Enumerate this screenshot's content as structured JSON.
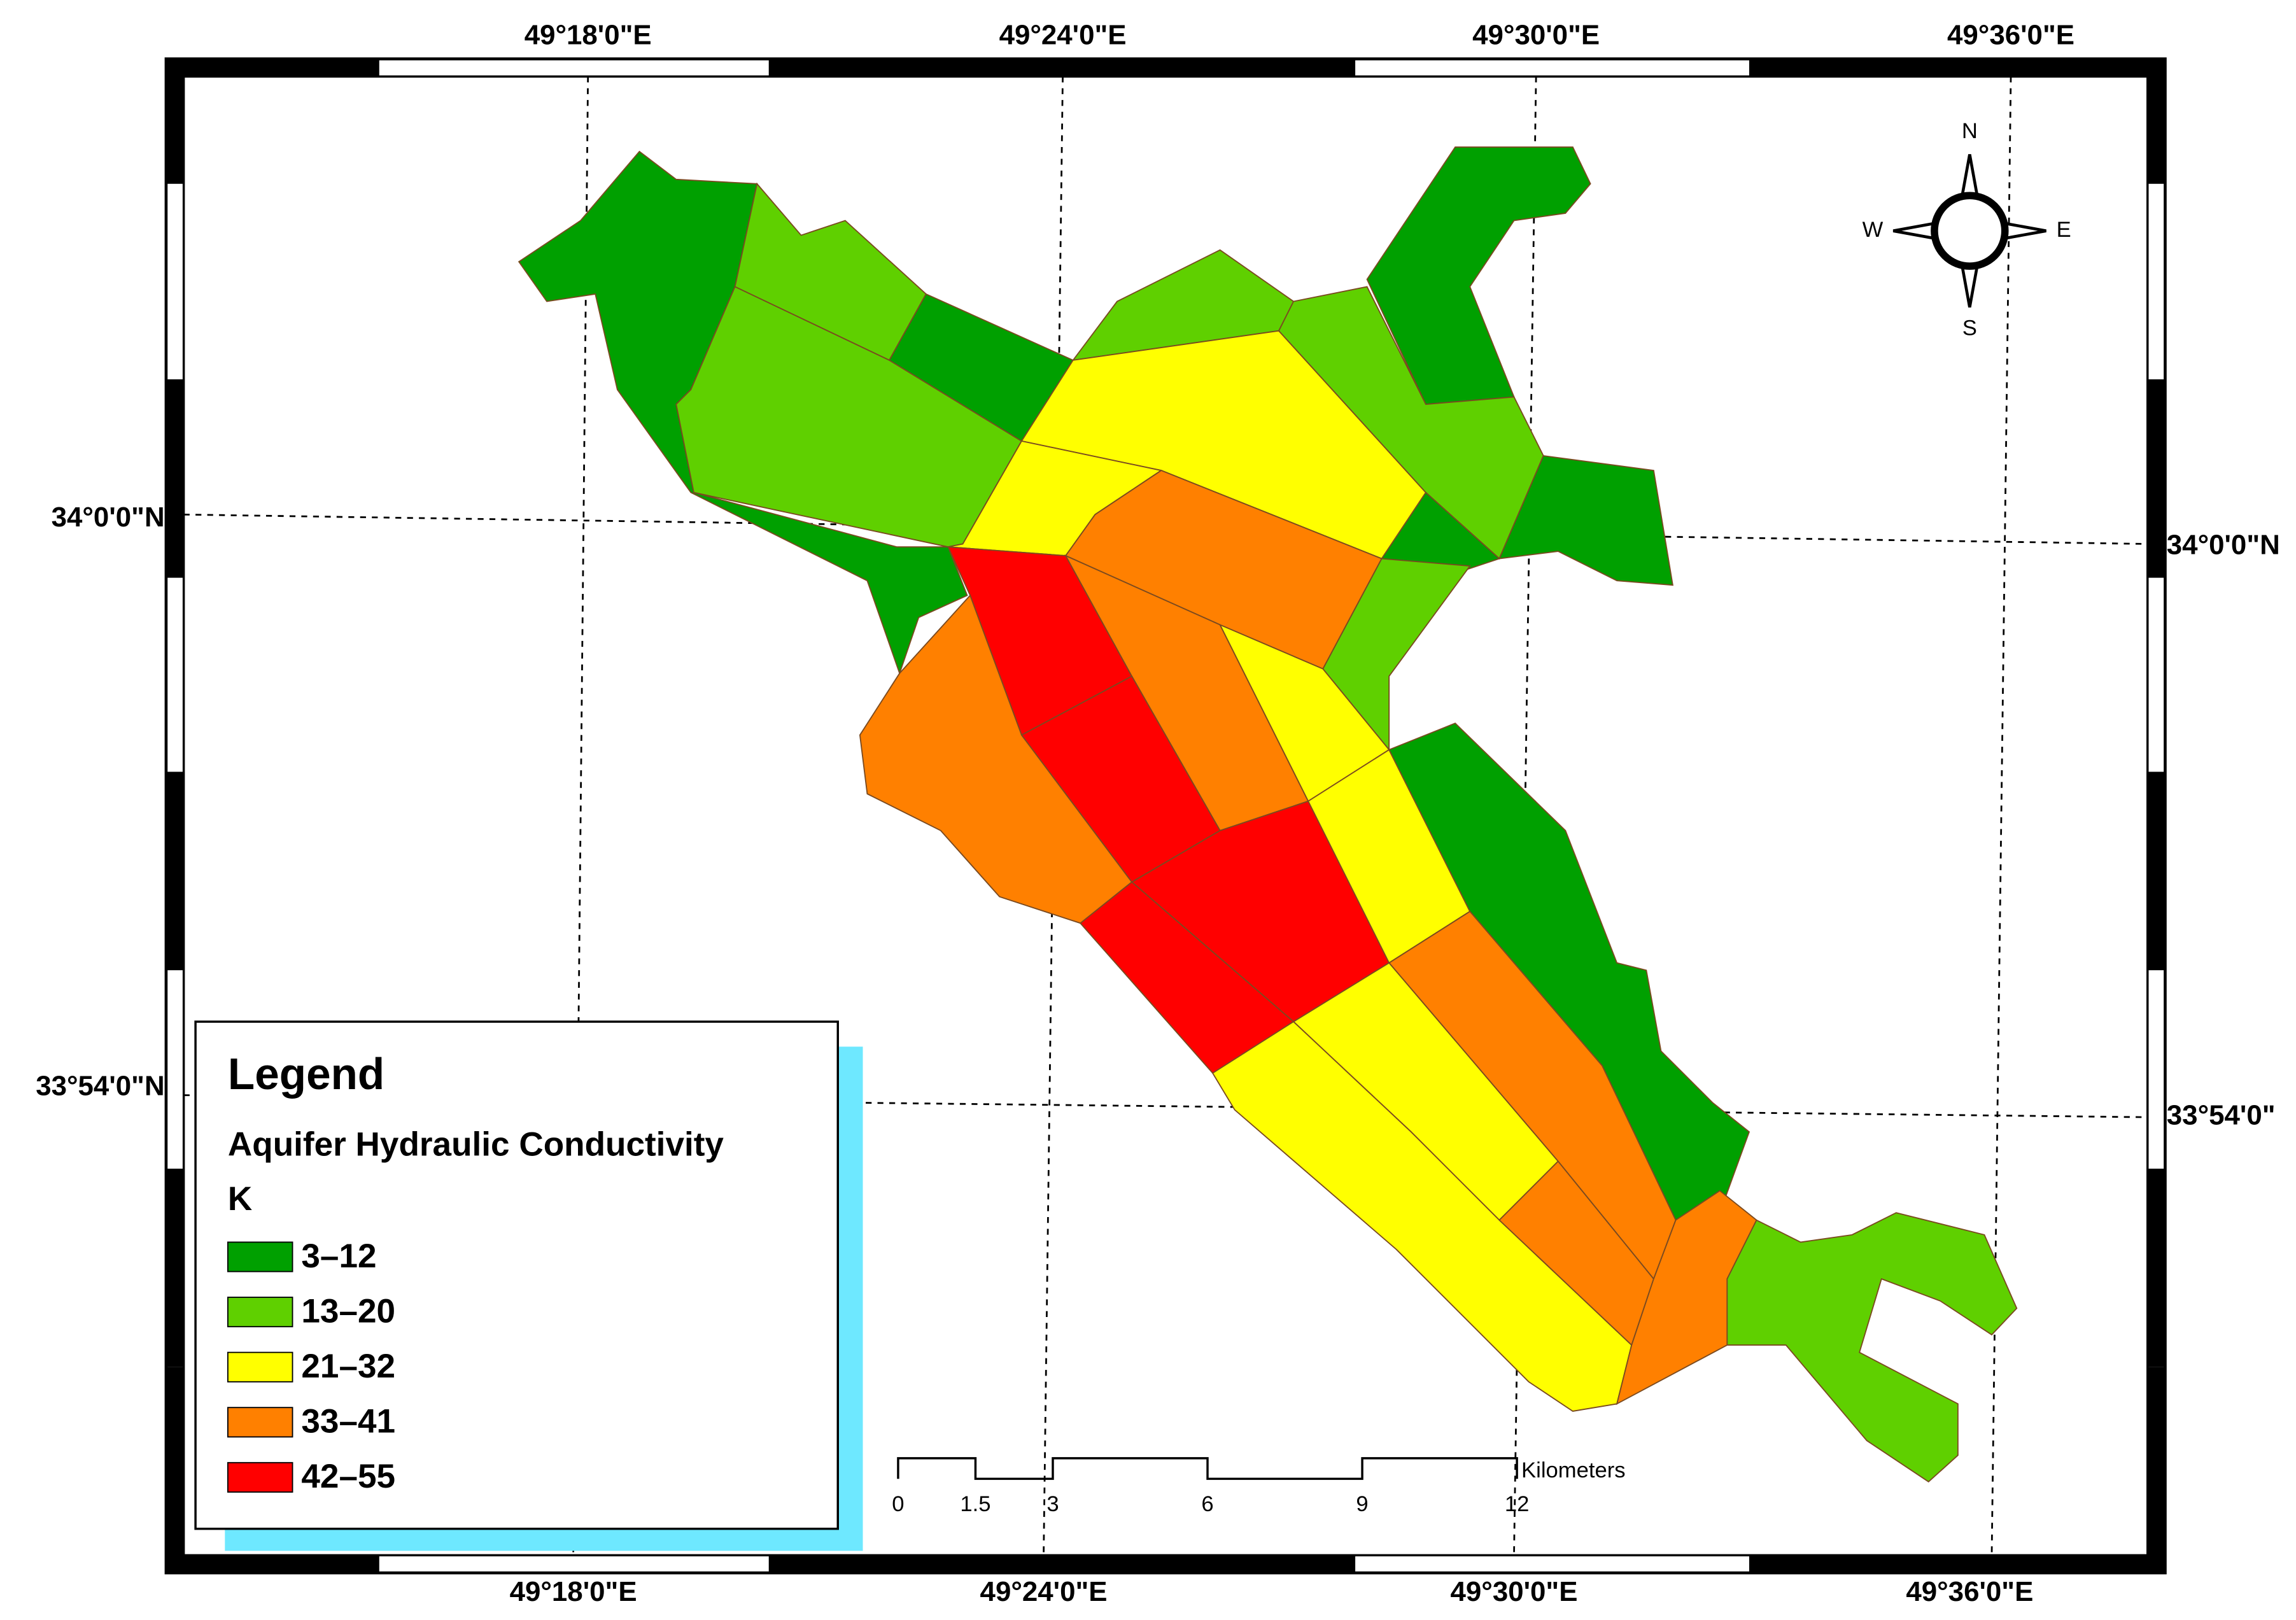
{
  "map": {
    "top_labels": [
      "49°18'0\"E",
      "49°24'0\"E",
      "49°30'0\"E",
      "49°36'0\"E"
    ],
    "bottom_labels": [
      "49°18'0\"E",
      "49°24'0\"E",
      "49°30'0\"E",
      "49°36'0\"E"
    ],
    "left_labels": [
      "34°0'0\"N",
      "33°54'0\"N"
    ],
    "right_labels": [
      "34°0'0\"N",
      "33°54'0\""
    ],
    "legend": {
      "title": "Legend",
      "subtitle": "Aquifer Hydraulic Conductivity",
      "field": "K",
      "classes": [
        {
          "label": "3–12",
          "color": "#00a000"
        },
        {
          "label": "13–20",
          "color": "#5fd000"
        },
        {
          "label": "21–32",
          "color": "#ffff00"
        },
        {
          "label": "33–41",
          "color": "#ff8000"
        },
        {
          "label": "42–55",
          "color": "#ff0000"
        }
      ]
    },
    "scale_bar": {
      "ticks": [
        0,
        1.5,
        3,
        6,
        9,
        12
      ],
      "unit": "Kilometers"
    },
    "compass": {
      "north": "N",
      "south": "S",
      "west": "W",
      "east": "E"
    }
  }
}
